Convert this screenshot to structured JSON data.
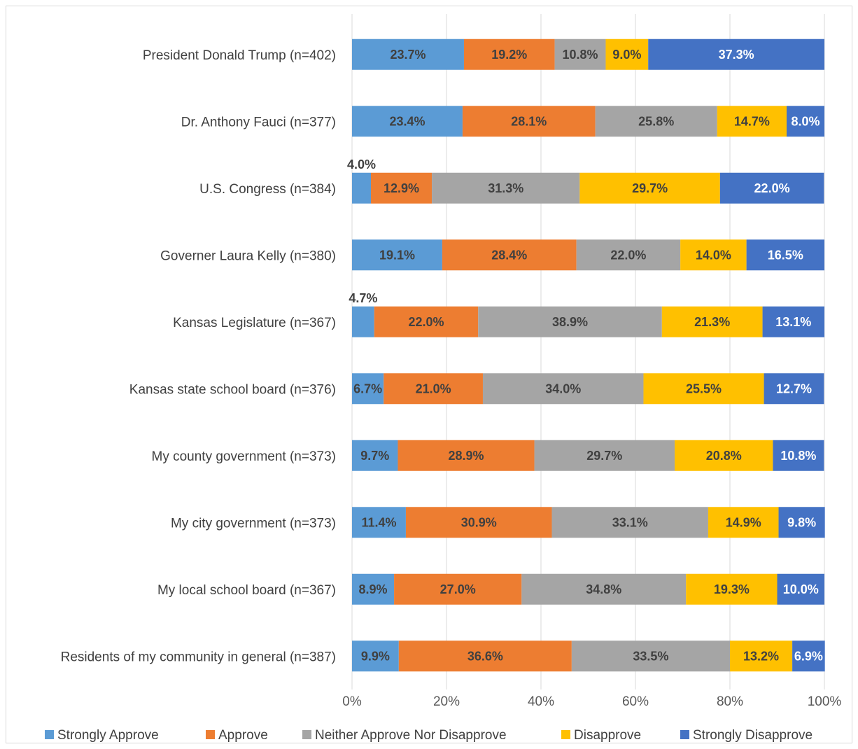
{
  "chart_data": {
    "type": "bar",
    "orientation": "horizontal",
    "stacked": "percent",
    "categories": [
      "President Donald Trump (n=402)",
      "Dr. Anthony Fauci (n=377)",
      "U.S. Congress (n=384)",
      "Governer Laura Kelly (n=380)",
      "Kansas Legislature (n=367)",
      "Kansas state school board (n=376)",
      "My county government (n=373)",
      "My city government (n=373)",
      "My local school board (n=367)",
      "Residents of my community in general (n=387)"
    ],
    "series": [
      {
        "name": "Strongly Approve",
        "color": "#5B9BD5",
        "values": [
          23.7,
          23.4,
          4.0,
          19.1,
          4.7,
          6.7,
          9.7,
          11.4,
          8.9,
          9.9
        ],
        "labels": [
          "23.7%",
          "23.4%",
          "4.0%",
          "19.1%",
          "4.7%",
          "6.7%",
          "9.7%",
          "11.4%",
          "8.9%",
          "9.9%"
        ]
      },
      {
        "name": "Approve",
        "color": "#ED7D31",
        "values": [
          19.2,
          28.1,
          12.9,
          28.4,
          22.0,
          21.0,
          28.9,
          30.9,
          27.0,
          36.6
        ],
        "labels": [
          "19.2%",
          "28.1%",
          "12.9%",
          "28.4%",
          "22.0%",
          "21.0%",
          "28.9%",
          "30.9%",
          "27.0%",
          "36.6%"
        ]
      },
      {
        "name": "Neither Approve Nor Disapprove",
        "color": "#A5A5A5",
        "values": [
          10.8,
          25.8,
          31.3,
          22.0,
          38.9,
          34.0,
          29.7,
          33.1,
          34.8,
          33.5
        ],
        "labels": [
          "10.8%",
          "25.8%",
          "31.3%",
          "22.0%",
          "38.9%",
          "34.0%",
          "29.7%",
          "33.1%",
          "34.8%",
          "33.5%"
        ]
      },
      {
        "name": "Disapprove",
        "color": "#FFC000",
        "values": [
          9.0,
          14.7,
          29.7,
          14.0,
          21.3,
          25.5,
          20.8,
          14.9,
          19.3,
          13.2
        ],
        "labels": [
          "9.0%",
          "14.7%",
          "29.7%",
          "14.0%",
          "21.3%",
          "25.5%",
          "20.8%",
          "14.9%",
          "19.3%",
          "13.2%"
        ]
      },
      {
        "name": "Strongly Disapprove",
        "color": "#4472C4",
        "values": [
          37.3,
          8.0,
          22.0,
          16.5,
          13.1,
          12.7,
          10.8,
          9.8,
          10.0,
          6.9
        ],
        "labels": [
          "37.3%",
          "8.0%",
          "22.0%",
          "16.5%",
          "13.1%",
          "12.7%",
          "10.8%",
          "9.8%",
          "10.0%",
          "6.9%"
        ]
      }
    ],
    "xlim": [
      0,
      100
    ],
    "xticks": [
      "0%",
      "20%",
      "40%",
      "60%",
      "80%",
      "100%"
    ],
    "title": "",
    "xlabel": "",
    "ylabel": "",
    "grid": true,
    "legend": "bottom"
  }
}
